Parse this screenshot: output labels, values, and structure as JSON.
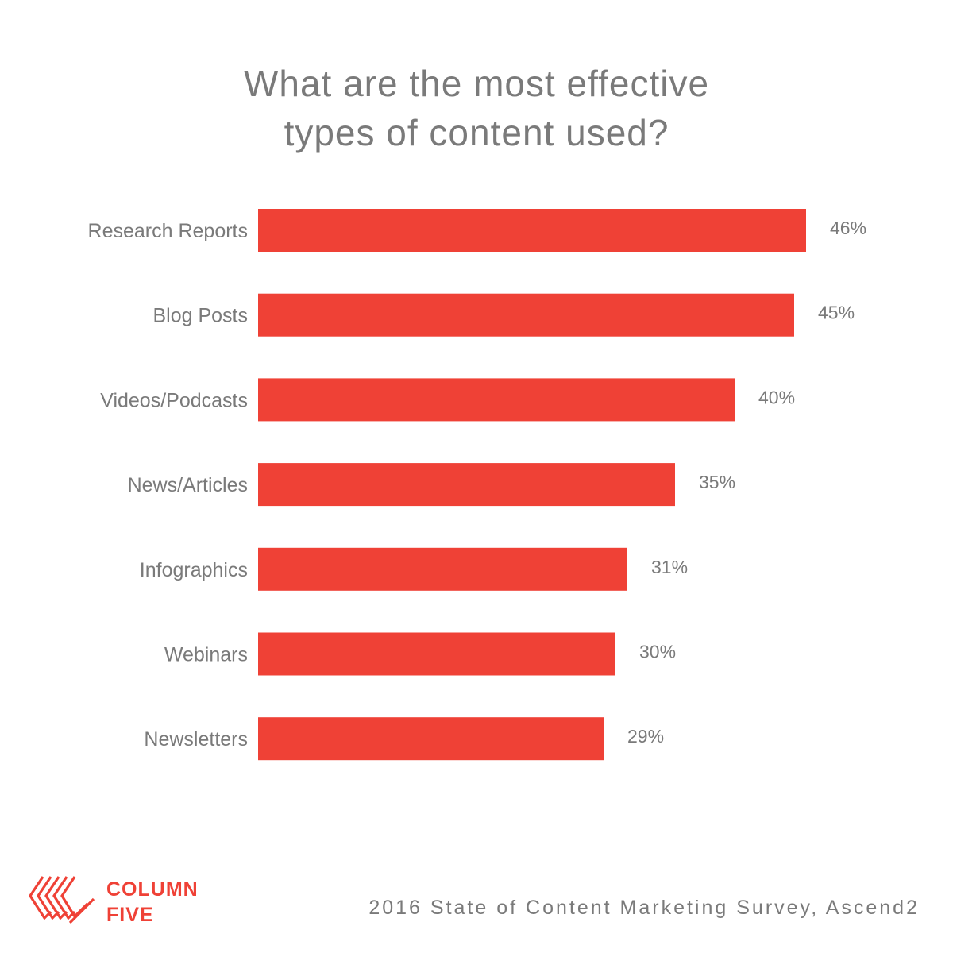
{
  "title": {
    "line1": "What are the most effective",
    "line2": "types of content used?"
  },
  "chart_data": {
    "type": "bar",
    "orientation": "horizontal",
    "categories": [
      "Research Reports",
      "Blog Posts",
      "Videos/Podcasts",
      "News/Articles",
      "Infographics",
      "Webinars",
      "Newsletters"
    ],
    "values": [
      46,
      45,
      40,
      35,
      31,
      30,
      29
    ],
    "value_labels": [
      "46%",
      "45%",
      "40%",
      "35%",
      "31%",
      "30%",
      "29%"
    ],
    "unit": "%",
    "grid": false,
    "bar_color": "#ef4136",
    "label_color": "#7a7a7a"
  },
  "brand": {
    "line1": "COLUMN",
    "line2": "FIVE",
    "logo_icon": "column-five-chevron-logo"
  },
  "source": "2016 State of Content Marketing Survey, Ascend2"
}
